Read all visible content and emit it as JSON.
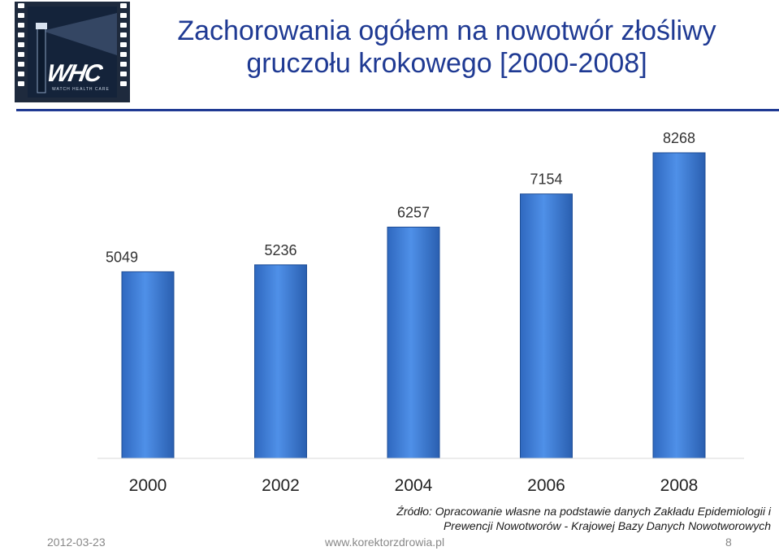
{
  "logo": {
    "text": "WHC",
    "subtext": "WATCH HEALTH CARE"
  },
  "title_lines": [
    "Zachorowania ogółem na nowotwór złośliwy",
    "gruczołu krokowego [2000-2008]"
  ],
  "colors": {
    "bar": "#3a78d2",
    "bar_edge": "#1f4e96",
    "title": "#1f3a93"
  },
  "chart_data": {
    "type": "bar",
    "categories": [
      "2000",
      "2002",
      "2004",
      "2006",
      "2008"
    ],
    "values": [
      5049,
      5236,
      6257,
      7154,
      8268
    ],
    "data_labels": [
      "5049",
      "5236",
      "6257",
      "7154",
      "8268"
    ]
  },
  "source_lines": [
    "Źródło: Opracowanie własne na podstawie danych Zakładu Epidemiologii i",
    "Prewencji Nowotworów - Krajowej Bazy Danych Nowotworowych"
  ],
  "footer": {
    "date": "2012-03-23",
    "site": "www.korektorzdrowia.pl",
    "page": "8"
  }
}
